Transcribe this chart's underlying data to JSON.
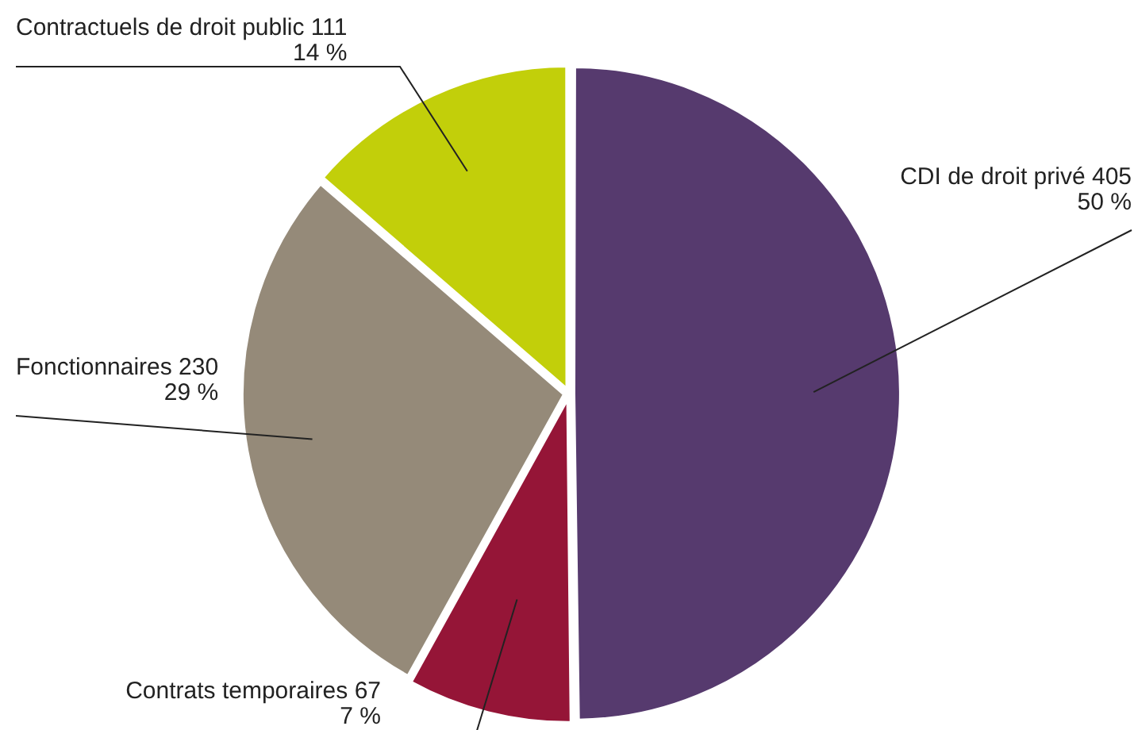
{
  "chart_data": {
    "type": "pie",
    "categories": [
      "CDI de droit privé",
      "Contrats temporaires",
      "Fonctionnaires",
      "Contractuels de droit public"
    ],
    "values": [
      405,
      67,
      230,
      111
    ],
    "colors": [
      "#563a6e",
      "#951537",
      "#958a79",
      "#c2cf0a"
    ],
    "value_labels": [
      "405\n50 %",
      "67\n7 %",
      "230\n29 %",
      "111\n14 %"
    ],
    "legend": false
  }
}
